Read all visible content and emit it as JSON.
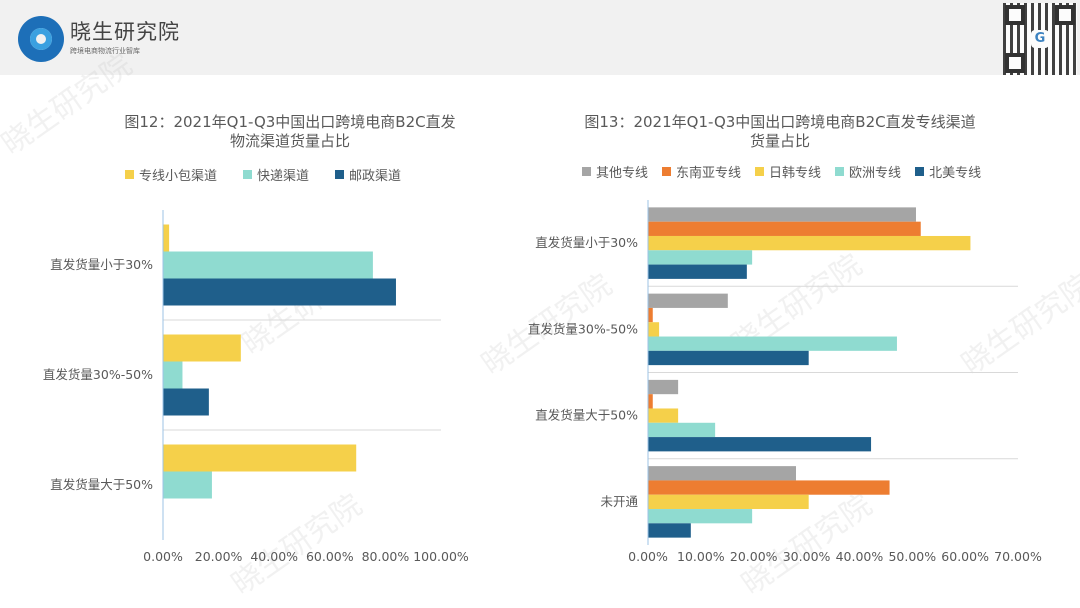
{
  "header": {
    "brand": "晓生研究院",
    "brand_sub": "跨境电商物流行业智库",
    "watermark": "晓生研究院"
  },
  "chart_data": [
    {
      "type": "bar",
      "orientation": "horizontal",
      "title_line1": "图12：2021年Q1-Q3中国出口跨境电商B2C直发",
      "title_line2": "物流渠道货量占比",
      "categories": [
        "直发货量小于30%",
        "直发货量30%-50%",
        "直发货量大于50%"
      ],
      "series": [
        {
          "name": "专线小包渠道",
          "color": "#f5d04a",
          "values": [
            2.2,
            28.0,
            69.5
          ]
        },
        {
          "name": "快递渠道",
          "color": "#8fdbd0",
          "values": [
            75.5,
            7.0,
            17.6
          ]
        },
        {
          "name": "邮政渠道",
          "color": "#1f5f8b",
          "values": [
            83.8,
            16.5,
            0
          ]
        }
      ],
      "xlim": [
        0,
        100
      ],
      "ticks": [
        "0.00%",
        "20.00%",
        "40.00%",
        "60.00%",
        "80.00%",
        "100.00%"
      ],
      "legend": "top"
    },
    {
      "type": "bar",
      "orientation": "horizontal",
      "title_line1": "图13：2021年Q1-Q3中国出口跨境电商B2C直发专线渠道",
      "title_line2": "货量占比",
      "categories": [
        "直发货量小于30%",
        "直发货量30%-50%",
        "直发货量大于50%",
        "未开通"
      ],
      "series": [
        {
          "name": "其他专线",
          "color": "#a5a5a5",
          "values": [
            50.7,
            15.1,
            5.7,
            28.0
          ]
        },
        {
          "name": "东南亚专线",
          "color": "#ed7d31",
          "values": [
            51.6,
            0.9,
            0.9,
            45.7
          ]
        },
        {
          "name": "日韩专线",
          "color": "#f5d04a",
          "values": [
            61.0,
            2.1,
            5.7,
            30.4
          ]
        },
        {
          "name": "欧洲专线",
          "color": "#8fdbd0",
          "values": [
            19.7,
            47.1,
            12.7,
            19.7
          ]
        },
        {
          "name": "北美专线",
          "color": "#1f5f8b",
          "values": [
            18.7,
            30.4,
            42.2,
            8.1
          ]
        }
      ],
      "xlim": [
        0,
        70
      ],
      "ticks": [
        "0.00%",
        "10.00%",
        "20.00%",
        "30.00%",
        "40.00%",
        "50.00%",
        "60.00%",
        "70.00%"
      ],
      "legend": "top"
    }
  ]
}
